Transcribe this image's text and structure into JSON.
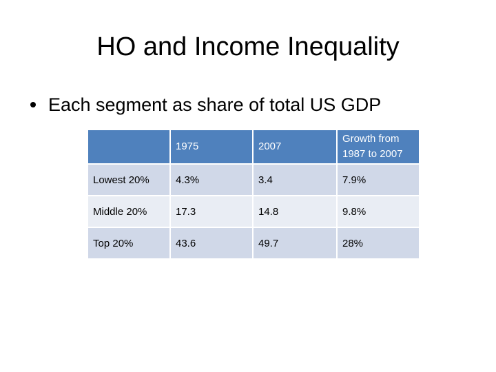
{
  "slide": {
    "title": "HO and Income Inequality",
    "bullet": "Each segment as share of total US GDP"
  },
  "table": {
    "headers": [
      "",
      "1975",
      "2007",
      "Growth from 1987 to 2007"
    ],
    "rows": [
      {
        "label": "Lowest 20%",
        "v1975": "4.3%",
        "v2007": "3.4",
        "growth": "7.9%"
      },
      {
        "label": "Middle 20%",
        "v1975": "17.3",
        "v2007": "14.8",
        "growth": "9.8%"
      },
      {
        "label": "Top 20%",
        "v1975": "43.6",
        "v2007": "49.7",
        "growth": "28%"
      }
    ]
  },
  "colors": {
    "header_fill": "#4f81bd",
    "row_dark": "#d0d8e8",
    "row_light": "#e9edf4"
  }
}
